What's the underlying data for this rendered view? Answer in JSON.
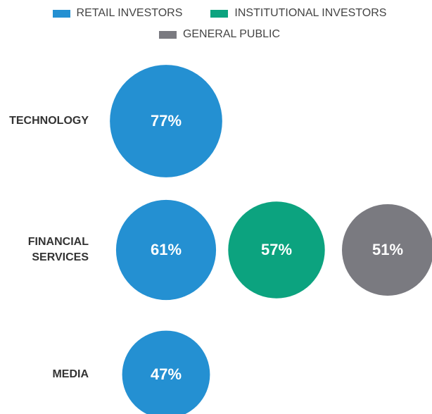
{
  "chart_data": {
    "type": "bubble",
    "categories": [
      "TECHNOLOGY",
      "FINANCIAL SERVICES",
      "MEDIA"
    ],
    "series": [
      {
        "name": "RETAIL INVESTORS",
        "color": "#2490d2",
        "values": [
          77,
          61,
          47
        ],
        "value_labels": [
          "77%",
          "61%",
          "47%"
        ]
      },
      {
        "name": "INSTITUTIONAL INVESTORS",
        "color": "#0ca37f",
        "values": [
          null,
          57,
          null
        ],
        "value_labels": [
          null,
          "57%",
          null
        ]
      },
      {
        "name": "GENERAL PUBLIC",
        "color": "#7a7a80",
        "values": [
          null,
          51,
          null
        ],
        "value_labels": [
          null,
          "51%",
          null
        ]
      }
    ],
    "legend": "top"
  }
}
